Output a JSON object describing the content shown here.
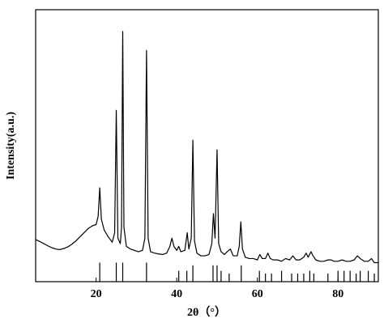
{
  "chart_data": {
    "type": "line",
    "xlabel": "2θ（°）",
    "ylabel": "Intensity(a.u.)",
    "xlim": [
      5,
      90
    ],
    "ylim": [
      0,
      100
    ],
    "xticks": [
      20,
      40,
      60,
      80
    ],
    "series": [
      {
        "color": "#000000",
        "x": [
          5,
          6,
          7,
          8,
          9,
          10,
          11,
          12,
          13,
          14,
          15,
          16,
          17,
          18,
          19,
          20,
          20.5,
          20.9,
          21.3,
          22,
          23,
          24,
          24.6,
          25,
          25.4,
          26,
          26.3,
          26.6,
          26.9,
          27.5,
          28.5,
          29.5,
          30.5,
          31.5,
          32.1,
          32.5,
          32.9,
          33.5,
          34.5,
          35.5,
          36.5,
          37.5,
          38.3,
          38.8,
          39.3,
          40,
          40.5,
          41,
          42,
          42.6,
          43,
          43.6,
          44,
          44.4,
          45,
          46,
          47,
          48,
          48.7,
          49.1,
          49.5,
          50,
          50.4,
          51,
          51.8,
          52.5,
          53.3,
          54,
          55,
          55.5,
          55.9,
          56.3,
          57,
          58,
          59,
          60,
          60.6,
          61.2,
          62,
          62.6,
          63.2,
          64,
          65,
          66,
          67,
          68,
          68.8,
          69.6,
          70.5,
          71.5,
          72.1,
          72.6,
          73.3,
          73.8,
          74.5,
          75.5,
          76.5,
          77.5,
          78.3,
          79,
          80,
          81,
          82,
          83,
          84,
          84.8,
          85.5,
          86.5,
          87.5,
          88.3,
          89,
          90
        ],
        "values": [
          15.5,
          14.8,
          14,
          13.2,
          12.5,
          12,
          11.8,
          12.2,
          12.8,
          13.8,
          15,
          16.5,
          18,
          19.5,
          20.5,
          21,
          24,
          34.5,
          23,
          19,
          16.5,
          14.5,
          18,
          63,
          16,
          14,
          20,
          92,
          20,
          13,
          12,
          11.5,
          11,
          11.5,
          16,
          85,
          16,
          11,
          10.5,
          10.2,
          10,
          10.5,
          13,
          16,
          13,
          11.5,
          13,
          11,
          11.5,
          18,
          12,
          16,
          52,
          15,
          10.5,
          9.5,
          9.5,
          10,
          14,
          25,
          16,
          48.5,
          14,
          11,
          10,
          11,
          12,
          9.5,
          9.5,
          13,
          22,
          12,
          9,
          8.5,
          8.5,
          8,
          10,
          8.5,
          8.5,
          10.5,
          8.5,
          8,
          8,
          7.5,
          8.5,
          8,
          9.5,
          8,
          8,
          9,
          10.5,
          9,
          11,
          9.5,
          8,
          7.5,
          7.5,
          8,
          8,
          7.5,
          7.5,
          8,
          7.5,
          7.5,
          8,
          9.5,
          8.5,
          7.5,
          7.5,
          8.5,
          7,
          7
        ]
      }
    ],
    "reference": {
      "color": "#000000",
      "x": [
        20.9,
        25,
        26.6,
        32.5,
        40.5,
        42.5,
        44,
        49,
        50,
        51,
        53,
        56,
        60.5,
        62,
        63.5,
        66,
        68.5,
        70,
        71.5,
        73,
        74,
        77.5,
        80,
        81.5,
        83,
        84.5,
        85.5,
        87.5,
        89
      ],
      "values": [
        7,
        7,
        7,
        7,
        4,
        4,
        6,
        6,
        6,
        4,
        3,
        6,
        4,
        3,
        3,
        4,
        3,
        3,
        3,
        4,
        3,
        3,
        4,
        4,
        4,
        3,
        4,
        4,
        3
      ]
    }
  }
}
